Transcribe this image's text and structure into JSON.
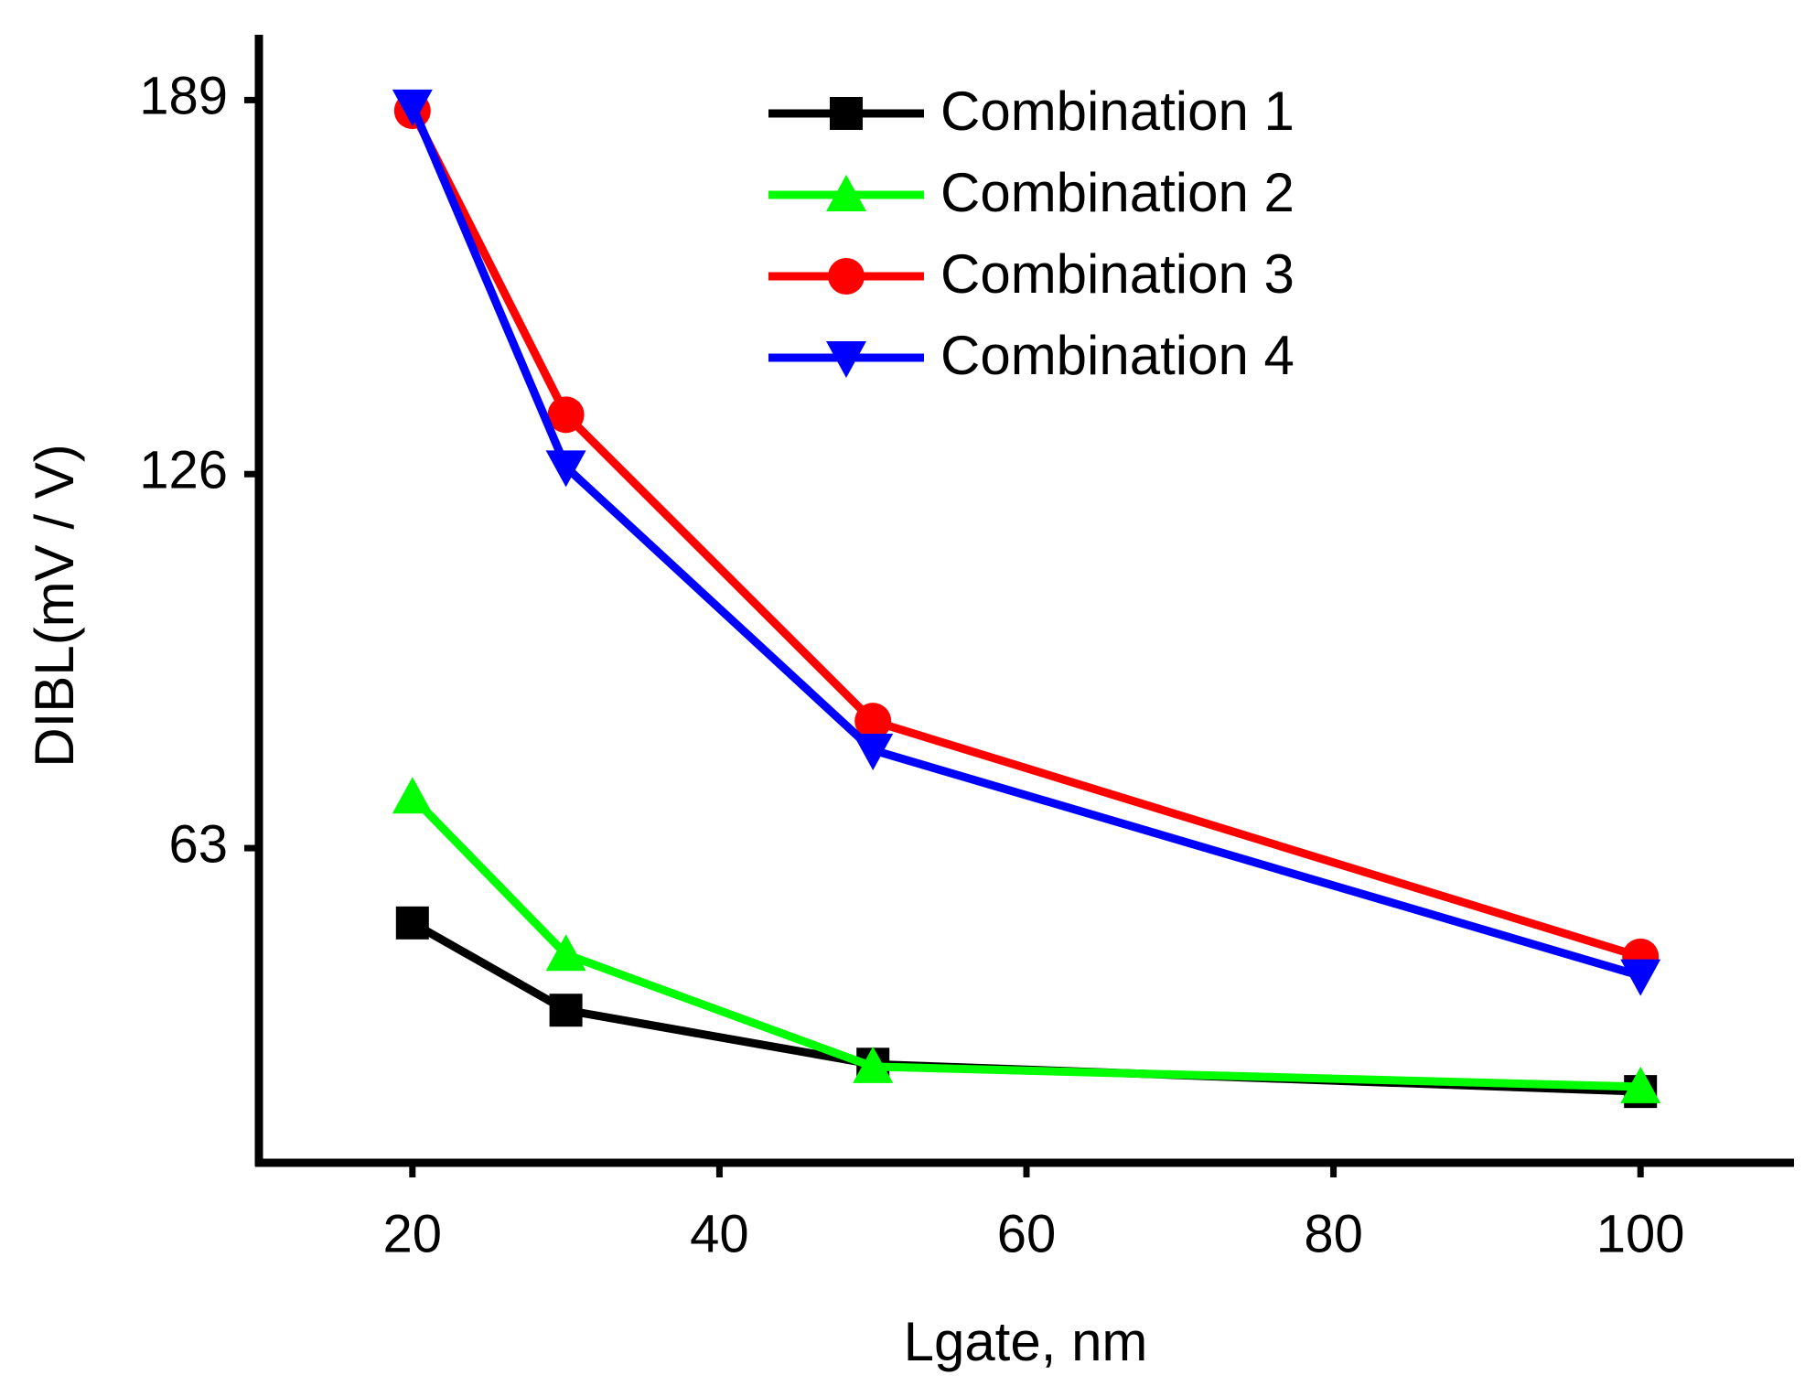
{
  "chart_data": {
    "type": "line",
    "x_label": "Lgate, nm",
    "y_label": "DIBL(mV / V)",
    "x": [
      20,
      30,
      50,
      100
    ],
    "series": [
      {
        "name": "Combination 1",
        "color": "#000000",
        "marker": "square",
        "values": [
          50.4,
          35.7,
          26.6,
          22
        ]
      },
      {
        "name": "Combination 2",
        "color": "#00ff00",
        "marker": "triangle-up",
        "values": [
          71.6,
          45.1,
          26.2,
          22.8
        ]
      },
      {
        "name": "Combination 3",
        "color": "#ff0000",
        "marker": "circle",
        "values": [
          187.2,
          136,
          84.4,
          44.7
        ]
      },
      {
        "name": "Combination 4",
        "color": "#0000ff",
        "marker": "triangle-down",
        "values": [
          188,
          127.2,
          79.5,
          41.5
        ]
      }
    ],
    "xlim": [
      10,
      110
    ],
    "xticks": [
      20,
      40,
      60,
      80,
      100
    ],
    "ylim": [
      10,
      200
    ],
    "yticks": [
      63,
      126,
      189
    ],
    "legend": "top-right"
  }
}
